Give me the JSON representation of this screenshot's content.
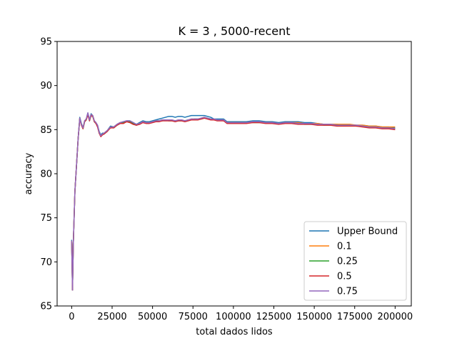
{
  "chart_data": {
    "type": "line",
    "title": "K = 3 , 5000-recent",
    "xlabel": "total dados lidos",
    "ylabel": "accuracy",
    "xlim": [
      -9000,
      210000
    ],
    "ylim": [
      65,
      95
    ],
    "xticks": [
      0,
      25000,
      50000,
      75000,
      100000,
      125000,
      150000,
      175000,
      200000
    ],
    "xtick_labels": [
      "0",
      "25000",
      "50000",
      "75000",
      "100000",
      "125000",
      "150000",
      "175000",
      "200000"
    ],
    "yticks": [
      65,
      70,
      75,
      80,
      85,
      90,
      95
    ],
    "ytick_labels": [
      "65",
      "70",
      "75",
      "80",
      "85",
      "90",
      "95"
    ],
    "grid": false,
    "legend_position": "lower-right",
    "series": [
      {
        "name": "Upper Bound",
        "color": "#1f77b4",
        "x": [
          0,
          500,
          1000,
          2000,
          3000,
          4000,
          5000,
          6000,
          7000,
          8000,
          9000,
          10000,
          11000,
          12000,
          13000,
          14000,
          15000,
          16000,
          17000,
          18000,
          19000,
          20000,
          22000,
          24000,
          26000,
          28000,
          30000,
          32000,
          34000,
          36000,
          38000,
          40000,
          42000,
          44000,
          46000,
          48000,
          50000,
          52000,
          54000,
          56000,
          58000,
          60000,
          62000,
          64000,
          66000,
          68000,
          70000,
          72000,
          74000,
          76000,
          78000,
          80000,
          82000,
          84000,
          86000,
          88000,
          90000,
          92000,
          94000,
          96000,
          98000,
          100000,
          104000,
          108000,
          112000,
          116000,
          120000,
          124000,
          128000,
          132000,
          136000,
          140000,
          144000,
          148000,
          152000,
          156000,
          160000,
          164000,
          168000,
          172000,
          176000,
          180000,
          184000,
          188000,
          192000,
          196000,
          200000
        ],
        "y": [
          72.5,
          66.8,
          72.0,
          78.0,
          81.0,
          84.0,
          86.4,
          85.7,
          85.2,
          86.0,
          86.2,
          86.9,
          86.1,
          86.8,
          86.6,
          86.0,
          85.8,
          85.5,
          84.8,
          84.4,
          84.6,
          84.6,
          84.9,
          85.4,
          85.3,
          85.6,
          85.8,
          85.9,
          86.0,
          86.0,
          85.8,
          85.6,
          85.8,
          86.0,
          85.9,
          85.9,
          86.0,
          86.1,
          86.2,
          86.3,
          86.4,
          86.5,
          86.5,
          86.4,
          86.5,
          86.5,
          86.4,
          86.5,
          86.6,
          86.6,
          86.6,
          86.6,
          86.6,
          86.5,
          86.4,
          86.2,
          86.2,
          86.2,
          86.2,
          85.9,
          85.9,
          85.9,
          85.9,
          85.9,
          86.0,
          86.0,
          85.9,
          85.9,
          85.8,
          85.9,
          85.9,
          85.9,
          85.8,
          85.8,
          85.7,
          85.6,
          85.6,
          85.6,
          85.5,
          85.5,
          85.5,
          85.5,
          85.4,
          85.4,
          85.3,
          85.3,
          85.2
        ]
      },
      {
        "name": "0.1",
        "color": "#ff7f0e",
        "x": [
          0,
          500,
          1000,
          2000,
          3000,
          4000,
          5000,
          6000,
          7000,
          8000,
          9000,
          10000,
          11000,
          12000,
          13000,
          14000,
          15000,
          16000,
          17000,
          18000,
          19000,
          20000,
          22000,
          24000,
          26000,
          28000,
          30000,
          32000,
          34000,
          36000,
          38000,
          40000,
          42000,
          44000,
          46000,
          48000,
          50000,
          52000,
          54000,
          56000,
          58000,
          60000,
          62000,
          64000,
          66000,
          68000,
          70000,
          72000,
          74000,
          76000,
          78000,
          80000,
          82000,
          84000,
          86000,
          88000,
          90000,
          92000,
          94000,
          96000,
          98000,
          100000,
          104000,
          108000,
          112000,
          116000,
          120000,
          124000,
          128000,
          132000,
          136000,
          140000,
          144000,
          148000,
          152000,
          156000,
          160000,
          164000,
          168000,
          172000,
          176000,
          180000,
          184000,
          188000,
          192000,
          196000,
          200000
        ],
        "y": [
          72.4,
          66.8,
          72.0,
          78.0,
          81.0,
          84.0,
          86.3,
          85.6,
          85.2,
          86.0,
          86.2,
          86.8,
          86.1,
          86.7,
          86.6,
          86.0,
          85.8,
          85.4,
          84.7,
          84.3,
          84.5,
          84.6,
          84.9,
          85.3,
          85.3,
          85.6,
          85.8,
          85.8,
          86.0,
          85.9,
          85.7,
          85.6,
          85.7,
          85.9,
          85.8,
          85.8,
          85.9,
          86.0,
          86.0,
          86.1,
          86.1,
          86.1,
          86.1,
          86.0,
          86.1,
          86.1,
          86.0,
          86.1,
          86.2,
          86.2,
          86.2,
          86.3,
          86.4,
          86.3,
          86.2,
          86.1,
          86.1,
          86.1,
          86.1,
          85.8,
          85.8,
          85.8,
          85.8,
          85.8,
          85.9,
          85.9,
          85.8,
          85.8,
          85.7,
          85.8,
          85.8,
          85.8,
          85.7,
          85.7,
          85.7,
          85.6,
          85.6,
          85.6,
          85.6,
          85.6,
          85.5,
          85.5,
          85.4,
          85.4,
          85.3,
          85.3,
          85.3
        ]
      },
      {
        "name": "0.25",
        "color": "#2ca02c",
        "x": [
          0,
          500,
          1000,
          2000,
          3000,
          4000,
          5000,
          6000,
          7000,
          8000,
          9000,
          10000,
          11000,
          12000,
          13000,
          14000,
          15000,
          16000,
          17000,
          18000,
          19000,
          20000,
          22000,
          24000,
          26000,
          28000,
          30000,
          32000,
          34000,
          36000,
          38000,
          40000,
          42000,
          44000,
          46000,
          48000,
          50000,
          52000,
          54000,
          56000,
          58000,
          60000,
          62000,
          64000,
          66000,
          68000,
          70000,
          72000,
          74000,
          76000,
          78000,
          80000,
          82000,
          84000,
          86000,
          88000,
          90000,
          92000,
          94000,
          96000,
          98000,
          100000,
          104000,
          108000,
          112000,
          116000,
          120000,
          124000,
          128000,
          132000,
          136000,
          140000,
          144000,
          148000,
          152000,
          156000,
          160000,
          164000,
          168000,
          172000,
          176000,
          180000,
          184000,
          188000,
          192000,
          196000,
          200000
        ],
        "y": [
          72.3,
          66.8,
          72.0,
          78.0,
          81.0,
          84.0,
          86.2,
          85.6,
          85.1,
          85.9,
          86.1,
          86.8,
          86.0,
          86.6,
          86.5,
          85.9,
          85.7,
          85.4,
          84.6,
          84.3,
          84.5,
          84.5,
          84.8,
          85.3,
          85.2,
          85.5,
          85.7,
          85.8,
          85.9,
          85.9,
          85.7,
          85.5,
          85.7,
          85.9,
          85.8,
          85.8,
          85.9,
          86.0,
          86.0,
          86.0,
          86.1,
          86.0,
          86.0,
          86.0,
          86.0,
          86.0,
          86.0,
          86.1,
          86.1,
          86.2,
          86.2,
          86.2,
          86.3,
          86.3,
          86.2,
          86.1,
          86.1,
          86.1,
          86.0,
          85.8,
          85.8,
          85.8,
          85.8,
          85.8,
          85.8,
          85.8,
          85.8,
          85.7,
          85.7,
          85.7,
          85.7,
          85.7,
          85.6,
          85.6,
          85.6,
          85.5,
          85.5,
          85.5,
          85.5,
          85.5,
          85.4,
          85.4,
          85.3,
          85.3,
          85.2,
          85.2,
          85.1
        ]
      },
      {
        "name": "0.5",
        "color": "#d62728",
        "x": [
          0,
          500,
          1000,
          2000,
          3000,
          4000,
          5000,
          6000,
          7000,
          8000,
          9000,
          10000,
          11000,
          12000,
          13000,
          14000,
          15000,
          16000,
          17000,
          18000,
          19000,
          20000,
          22000,
          24000,
          26000,
          28000,
          30000,
          32000,
          34000,
          36000,
          38000,
          40000,
          42000,
          44000,
          46000,
          48000,
          50000,
          52000,
          54000,
          56000,
          58000,
          60000,
          62000,
          64000,
          66000,
          68000,
          70000,
          72000,
          74000,
          76000,
          78000,
          80000,
          82000,
          84000,
          86000,
          88000,
          90000,
          92000,
          94000,
          96000,
          98000,
          100000,
          104000,
          108000,
          112000,
          116000,
          120000,
          124000,
          128000,
          132000,
          136000,
          140000,
          144000,
          148000,
          152000,
          156000,
          160000,
          164000,
          168000,
          172000,
          176000,
          180000,
          184000,
          188000,
          192000,
          196000,
          200000
        ],
        "y": [
          72.3,
          66.8,
          72.0,
          78.0,
          81.0,
          84.0,
          86.2,
          85.5,
          85.1,
          85.9,
          86.1,
          86.7,
          86.0,
          86.6,
          86.5,
          85.9,
          85.7,
          85.3,
          84.6,
          84.2,
          84.4,
          84.5,
          84.8,
          85.2,
          85.2,
          85.5,
          85.7,
          85.7,
          85.9,
          85.8,
          85.6,
          85.5,
          85.6,
          85.8,
          85.7,
          85.7,
          85.8,
          85.9,
          85.9,
          86.0,
          86.0,
          86.0,
          86.0,
          85.9,
          86.0,
          86.0,
          85.9,
          86.0,
          86.1,
          86.1,
          86.1,
          86.2,
          86.3,
          86.2,
          86.1,
          86.1,
          86.0,
          86.0,
          86.0,
          85.7,
          85.7,
          85.7,
          85.7,
          85.7,
          85.8,
          85.8,
          85.7,
          85.7,
          85.6,
          85.7,
          85.7,
          85.6,
          85.6,
          85.6,
          85.5,
          85.5,
          85.5,
          85.4,
          85.4,
          85.4,
          85.4,
          85.3,
          85.2,
          85.2,
          85.1,
          85.1,
          85.0
        ]
      },
      {
        "name": "0.75",
        "color": "#9467bd",
        "x": [
          0,
          500,
          1000,
          2000,
          3000,
          4000,
          5000,
          6000,
          7000,
          8000,
          9000,
          10000,
          11000,
          12000,
          13000,
          14000,
          15000,
          16000,
          17000,
          18000,
          19000,
          20000,
          22000,
          24000,
          26000,
          28000,
          30000,
          32000,
          34000,
          36000,
          38000,
          40000,
          42000,
          44000,
          46000,
          48000,
          50000,
          52000,
          54000,
          56000,
          58000,
          60000,
          62000,
          64000,
          66000,
          68000,
          70000,
          72000,
          74000,
          76000,
          78000,
          80000,
          82000,
          84000,
          86000,
          88000,
          90000,
          92000,
          94000,
          96000,
          98000,
          100000,
          104000,
          108000,
          112000,
          116000,
          120000,
          124000,
          128000,
          132000,
          136000,
          140000,
          144000,
          148000,
          152000,
          156000,
          160000,
          164000,
          168000,
          172000,
          176000,
          180000,
          184000,
          188000,
          192000,
          196000,
          200000
        ],
        "y": [
          72.4,
          66.8,
          72.0,
          78.0,
          81.0,
          84.0,
          86.3,
          85.6,
          85.2,
          86.0,
          86.2,
          86.9,
          86.1,
          86.7,
          86.6,
          86.0,
          85.8,
          85.5,
          84.7,
          84.3,
          84.5,
          84.6,
          84.9,
          85.3,
          85.3,
          85.6,
          85.8,
          85.9,
          86.0,
          86.0,
          85.8,
          85.6,
          85.7,
          85.9,
          85.8,
          85.8,
          85.9,
          86.0,
          86.0,
          86.1,
          86.1,
          86.1,
          86.1,
          86.0,
          86.1,
          86.1,
          86.0,
          86.1,
          86.2,
          86.2,
          86.2,
          86.3,
          86.4,
          86.3,
          86.2,
          86.2,
          86.1,
          86.1,
          86.1,
          85.8,
          85.8,
          85.8,
          85.8,
          85.8,
          85.9,
          85.9,
          85.8,
          85.8,
          85.7,
          85.8,
          85.8,
          85.7,
          85.7,
          85.7,
          85.6,
          85.6,
          85.6,
          85.5,
          85.5,
          85.5,
          85.5,
          85.4,
          85.3,
          85.3,
          85.2,
          85.2,
          85.1
        ]
      }
    ]
  }
}
